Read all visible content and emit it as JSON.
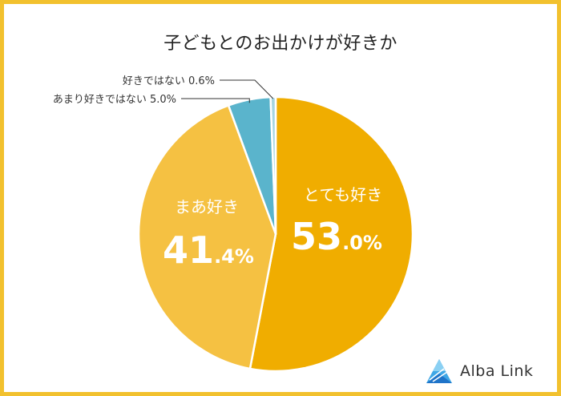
{
  "chart_data": {
    "type": "pie",
    "title": "子どもとのお出かけが好きか",
    "slices": [
      {
        "label": "とても好き",
        "value": 53.0,
        "display_int": "53",
        "display_dec": ".0%",
        "color": "#f0ad00"
      },
      {
        "label": "まあ好き",
        "value": 41.4,
        "display_int": "41",
        "display_dec": ".4%",
        "color": "#f5c142"
      },
      {
        "label": "あまり好きではない",
        "value": 5.0,
        "display": "あまり好きではない 5.0%",
        "color": "#5ab4cc"
      },
      {
        "label": "好きではない",
        "value": 0.6,
        "display": "好きではない 0.6%",
        "color": "#a6d5e2"
      }
    ],
    "start_angle_deg": 0,
    "direction": "clockwise",
    "slice_border_color": "#ffffff"
  },
  "brand": {
    "name": "Alba Link",
    "logo_colors": [
      "#1f74c9",
      "#3fa7e6",
      "#8ad0f3"
    ]
  },
  "frame_color": "#f2c12e"
}
